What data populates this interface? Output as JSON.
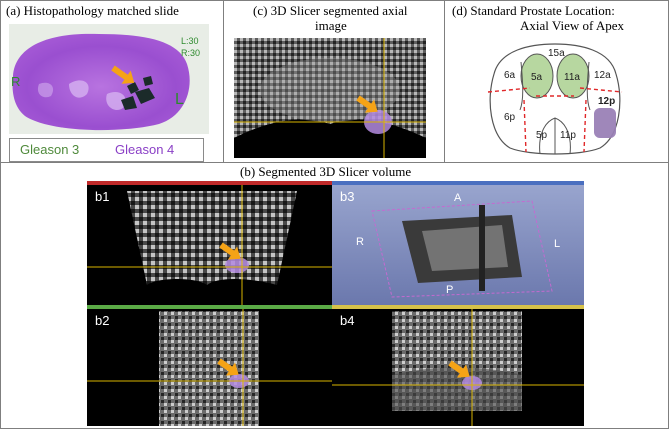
{
  "figure": {
    "panel_a": {
      "caption": "(a)  Histopathology matched slide",
      "slide_text_left": "R",
      "slide_text_right": "L",
      "slide_note_1": "L:30",
      "slide_note_2": "R:30",
      "legend": {
        "g3": "Gleason 3",
        "g4": "Gleason 4",
        "g3_color": "#4f8a3b",
        "g4_color": "#8a3fc6"
      }
    },
    "panel_c": {
      "caption_line1": "(c)  3D Slicer segmented axial",
      "caption_line2": "image"
    },
    "panel_d": {
      "caption_line1": "(d)  Standard Prostate Location:",
      "caption_line2": "Axial View of Apex",
      "zones": [
        "15a",
        "5a",
        "11a",
        "6a",
        "12a",
        "6p",
        "5p",
        "11p",
        "12p"
      ]
    },
    "panel_b": {
      "caption": "(b)  Segmented 3D Slicer volume",
      "sub_labels": [
        "b1",
        "b2",
        "b3",
        "b4"
      ],
      "orientation": {
        "top": "A",
        "left": "R",
        "right": "L",
        "bottom": "P"
      }
    },
    "colors": {
      "arrow": "#f5a316",
      "crosshair": "#d9b400",
      "lesion": "#b48be0",
      "zone_fill": "#b7d7a0",
      "dashed": "#e0282a"
    }
  }
}
